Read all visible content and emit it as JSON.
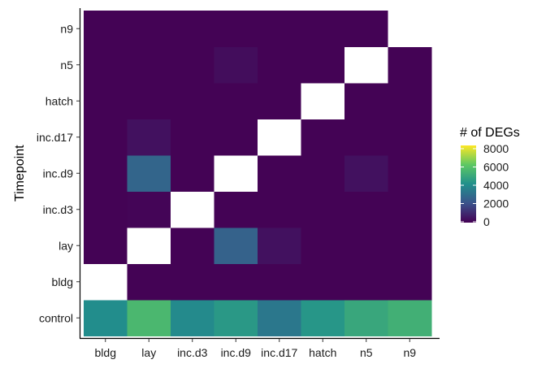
{
  "chart_data": {
    "type": "heatmap",
    "title": "",
    "xlabel": "",
    "ylabel": "Timepoint",
    "x_categories": [
      "bldg",
      "lay",
      "inc.d3",
      "inc.d9",
      "inc.d17",
      "hatch",
      "n5",
      "n9"
    ],
    "y_categories": [
      "control",
      "bldg",
      "lay",
      "inc.d3",
      "inc.d9",
      "inc.d17",
      "hatch",
      "n5",
      "n9"
    ],
    "values": [
      [
        3900,
        5400,
        3800,
        4300,
        3200,
        4200,
        4800,
        5100
      ],
      [
        null,
        50,
        50,
        50,
        50,
        50,
        50,
        50
      ],
      [
        50,
        null,
        50,
        2500,
        400,
        50,
        50,
        50
      ],
      [
        50,
        100,
        null,
        50,
        50,
        50,
        50,
        50
      ],
      [
        50,
        2600,
        50,
        null,
        50,
        50,
        400,
        50
      ],
      [
        50,
        400,
        50,
        50,
        null,
        50,
        50,
        50
      ],
      [
        50,
        50,
        50,
        50,
        50,
        null,
        50,
        50
      ],
      [
        50,
        50,
        50,
        300,
        50,
        50,
        null,
        50
      ],
      [
        50,
        50,
        50,
        50,
        50,
        50,
        50,
        null
      ]
    ],
    "color_scale": {
      "name": "viridis",
      "min": 0,
      "max": 8000,
      "stops": [
        "#440154",
        "#3b528b",
        "#21908c",
        "#5dc863",
        "#fde725"
      ]
    },
    "missing_color": "#ffffff",
    "legend": {
      "title": "# of DEGs",
      "ticks": [
        8000,
        6000,
        4000,
        2000,
        0
      ],
      "position": "right"
    },
    "grid": false
  }
}
